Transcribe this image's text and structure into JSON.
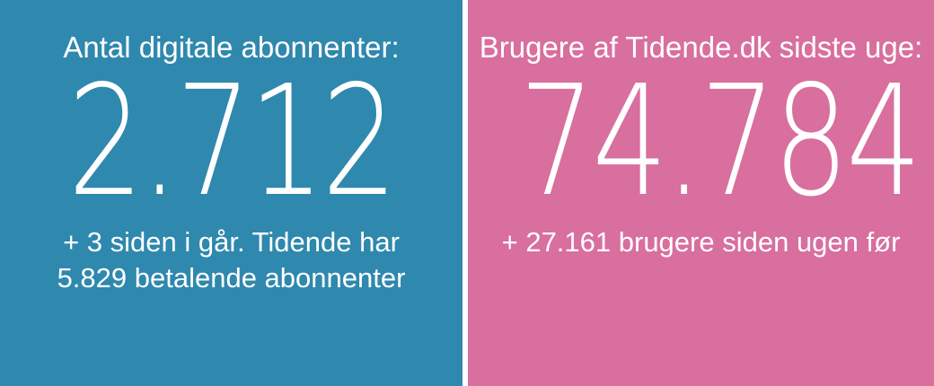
{
  "colors": {
    "left_panel": "#2f88ad",
    "right_panel": "#d86f9e",
    "text": "#ffffff"
  },
  "left": {
    "label": "Antal digitale abonnenter:",
    "value": "2.712",
    "sub_line1": "+ 3 siden i går. Tidende har",
    "sub_line2": "5.829 betalende abonnenter"
  },
  "right": {
    "label": "Brugere af Tidende.dk sidste uge:",
    "value": "74.784",
    "sub_line1": "+ 27.161 brugere siden ugen før"
  }
}
